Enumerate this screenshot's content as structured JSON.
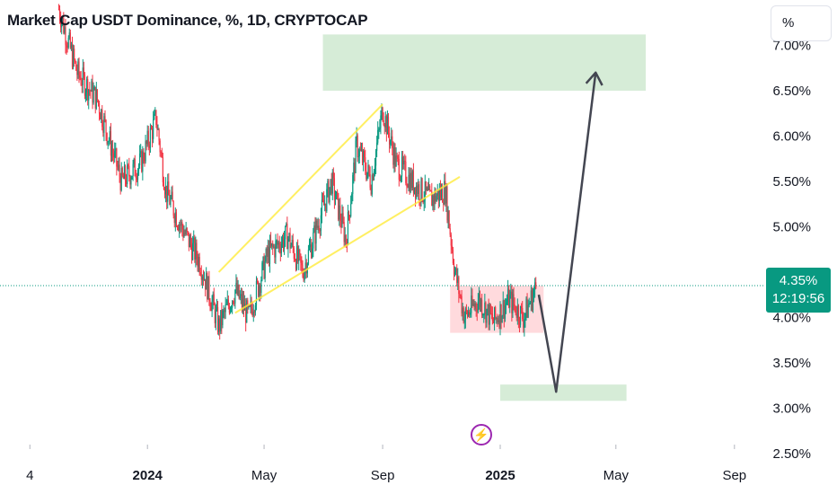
{
  "chart_data": {
    "type": "candlestick",
    "title": "Market Cap USDT Dominance, %, 1D, CRYPTOCAP",
    "y_unit_label": "%",
    "y_ticks": [
      "7.00%",
      "6.50%",
      "6.00%",
      "5.50%",
      "5.00%",
      "4.50%",
      "4.00%",
      "3.50%",
      "3.00%",
      "2.50%"
    ],
    "y_tick_values": [
      7.0,
      6.5,
      6.0,
      5.5,
      5.0,
      4.5,
      4.0,
      3.5,
      3.0,
      2.5
    ],
    "x_ticks": [
      "4",
      "2024",
      "May",
      "Sep",
      "2025",
      "May",
      "Sep"
    ],
    "x_tick_dates": [
      "2023-09-01",
      "2024-01-01",
      "2024-05-01",
      "2024-09-01",
      "2025-01-01",
      "2025-05-01",
      "2025-09-01"
    ],
    "x_tick_bold": [
      false,
      true,
      false,
      false,
      true,
      false,
      false
    ],
    "ylim": [
      2.35,
      7.5
    ],
    "xlim": [
      "2023-08-01",
      "2025-10-01"
    ],
    "last_price": "4.35%",
    "last_price_value": 4.35,
    "countdown": "12:19:56",
    "price_series": [
      {
        "date": "2023-10-01",
        "value": 7.4
      },
      {
        "date": "2023-10-20",
        "value": 6.7
      },
      {
        "date": "2023-11-10",
        "value": 6.4
      },
      {
        "date": "2023-12-05",
        "value": 5.5
      },
      {
        "date": "2023-12-25",
        "value": 5.7
      },
      {
        "date": "2024-01-10",
        "value": 6.2
      },
      {
        "date": "2024-01-20",
        "value": 5.4
      },
      {
        "date": "2024-02-05",
        "value": 5.0
      },
      {
        "date": "2024-02-25",
        "value": 4.6
      },
      {
        "date": "2024-03-15",
        "value": 3.9
      },
      {
        "date": "2024-04-01",
        "value": 4.3
      },
      {
        "date": "2024-04-15",
        "value": 4.0
      },
      {
        "date": "2024-05-05",
        "value": 4.7
      },
      {
        "date": "2024-05-25",
        "value": 4.9
      },
      {
        "date": "2024-06-10",
        "value": 4.5
      },
      {
        "date": "2024-06-25",
        "value": 5.0
      },
      {
        "date": "2024-07-10",
        "value": 5.5
      },
      {
        "date": "2024-07-25",
        "value": 4.85
      },
      {
        "date": "2024-08-05",
        "value": 5.9
      },
      {
        "date": "2024-08-20",
        "value": 5.5
      },
      {
        "date": "2024-09-01",
        "value": 6.3
      },
      {
        "date": "2024-09-15",
        "value": 5.7
      },
      {
        "date": "2024-10-01",
        "value": 5.5
      },
      {
        "date": "2024-10-20",
        "value": 5.3
      },
      {
        "date": "2024-11-05",
        "value": 5.4
      },
      {
        "date": "2024-11-15",
        "value": 4.5
      },
      {
        "date": "2024-11-25",
        "value": 4.0
      },
      {
        "date": "2024-12-10",
        "value": 4.2
      },
      {
        "date": "2024-12-25",
        "value": 3.95
      },
      {
        "date": "2025-01-10",
        "value": 4.2
      },
      {
        "date": "2025-01-25",
        "value": 4.0
      },
      {
        "date": "2025-02-08",
        "value": 4.35
      }
    ],
    "zones": [
      {
        "color": "#c8e6c9",
        "date_from": "2024-07-01",
        "date_to": "2025-06-01",
        "value_from": 6.5,
        "value_to": 7.12
      },
      {
        "color": "#ffcdd2",
        "date_from": "2024-11-10",
        "date_to": "2025-02-15",
        "value_from": 3.83,
        "value_to": 4.35
      },
      {
        "color": "#c8e6c9",
        "date_from": "2025-01-01",
        "date_to": "2025-05-12",
        "value_from": 3.08,
        "value_to": 3.26
      }
    ],
    "channel_lines": [
      {
        "from": [
          "2024-03-15",
          4.5
        ],
        "to": [
          "2024-09-01",
          6.35
        ]
      },
      {
        "from": [
          "2024-04-01",
          4.05
        ],
        "to": [
          "2024-11-20",
          5.55
        ]
      }
    ],
    "projection_path": [
      [
        "2025-02-10",
        4.25
      ],
      [
        "2025-02-28",
        3.18
      ],
      [
        "2025-04-10",
        6.7
      ]
    ],
    "colors": {
      "up": "#089981",
      "down": "#f23645",
      "line": "#2962ff",
      "arrow": "#434651",
      "channel": "#ffeb3b"
    }
  }
}
